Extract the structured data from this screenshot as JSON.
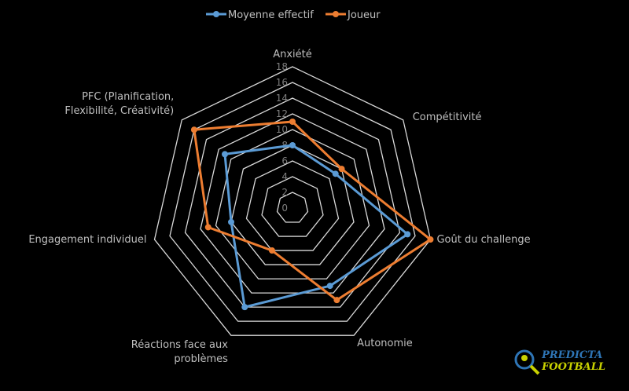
{
  "chart_data": {
    "type": "radar",
    "axes": [
      "Anxiété",
      "Compétitivité",
      "Goût du challenge",
      "Autonomie",
      "Réactions face aux problèmes",
      "Engagement individuel",
      "PFC (Planification, Flexibilité, Créativité)"
    ],
    "axis_label_lines": [
      [
        "Anxiété"
      ],
      [
        "Compétitivité"
      ],
      [
        "Goût du challenge"
      ],
      [
        "Autonomie"
      ],
      [
        "Réactions face aux",
        "problèmes"
      ],
      [
        "Engagement individuel"
      ],
      [
        "PFC (Planification,",
        "Flexibilité, Créativité)"
      ]
    ],
    "ticks": [
      "0",
      "2",
      "4",
      "6",
      "8",
      "10",
      "12",
      "14",
      "16",
      "18"
    ],
    "range": [
      0,
      18
    ],
    "grid": true,
    "legend_position": "top",
    "series": [
      {
        "name": "Moyenne effectif",
        "color": "#5b9bd5",
        "values": [
          8,
          7,
          15,
          11,
          14,
          8,
          11
        ]
      },
      {
        "name": "Joueur",
        "color": "#ed7d31",
        "values": [
          11,
          8,
          18,
          13,
          6,
          11,
          16
        ]
      }
    ]
  },
  "logo": {
    "line1": "PREDICTA",
    "line2": "FOOTBALL",
    "color1": "#2e75b6",
    "color2": "#c9d200"
  }
}
